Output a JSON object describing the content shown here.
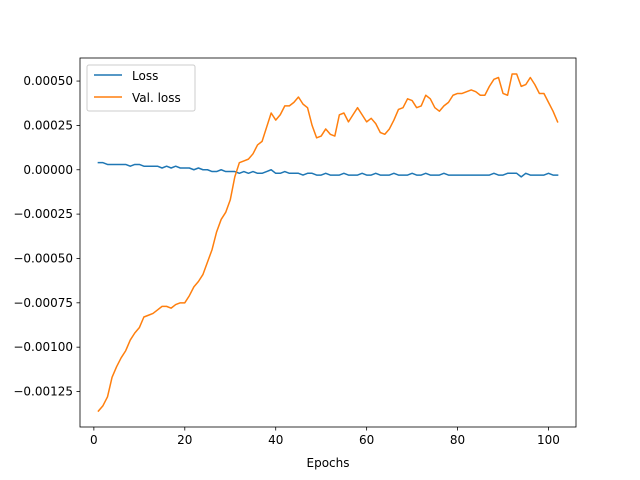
{
  "chart_data": {
    "type": "line",
    "title": "",
    "xlabel": "Epochs",
    "ylabel": "",
    "xlim": [
      -3.05,
      106.05
    ],
    "ylim": [
      -0.00145,
      0.00063
    ],
    "xticks": [
      0,
      20,
      40,
      60,
      80,
      100
    ],
    "xtick_labels": [
      "0",
      "20",
      "40",
      "60",
      "80",
      "100"
    ],
    "yticks": [
      -0.00125,
      -0.001,
      -0.00075,
      -0.0005,
      -0.00025,
      0,
      0.00025,
      0.0005
    ],
    "ytick_labels": [
      "−0.00125",
      "−0.00100",
      "−0.00075",
      "−0.00050",
      "−0.00025",
      "0.00000",
      "0.00025",
      "0.00050"
    ],
    "grid": false,
    "legend_position": "top-left",
    "x": [
      1,
      2,
      3,
      4,
      5,
      6,
      7,
      8,
      9,
      10,
      11,
      12,
      13,
      14,
      15,
      16,
      17,
      18,
      19,
      20,
      21,
      22,
      23,
      24,
      25,
      26,
      27,
      28,
      29,
      30,
      31,
      32,
      33,
      34,
      35,
      36,
      37,
      38,
      39,
      40,
      41,
      42,
      43,
      44,
      45,
      46,
      47,
      48,
      49,
      50,
      51,
      52,
      53,
      54,
      55,
      56,
      57,
      58,
      59,
      60,
      61,
      62,
      63,
      64,
      65,
      66,
      67,
      68,
      69,
      70,
      71,
      72,
      73,
      74,
      75,
      76,
      77,
      78,
      79,
      80,
      81,
      82,
      83,
      84,
      85,
      86,
      87,
      88,
      89,
      90,
      91,
      92,
      93,
      94,
      95,
      96,
      97,
      98,
      99,
      100,
      101,
      102
    ],
    "series": [
      {
        "name": "Loss",
        "color": "#1f77b4",
        "values": [
          4e-05,
          4e-05,
          3e-05,
          3e-05,
          3e-05,
          3e-05,
          3e-05,
          2e-05,
          3e-05,
          3e-05,
          2e-05,
          2e-05,
          2e-05,
          2e-05,
          1e-05,
          2e-05,
          1e-05,
          2e-05,
          1e-05,
          1e-05,
          1e-05,
          0.0,
          1e-05,
          0.0,
          0.0,
          -1e-05,
          -1e-05,
          0.0,
          -1e-05,
          -1e-05,
          -1e-05,
          -2e-05,
          -1e-05,
          -2e-05,
          -1e-05,
          -2e-05,
          -2e-05,
          -1e-05,
          0.0,
          -2e-05,
          -2e-05,
          -1e-05,
          -2e-05,
          -2e-05,
          -2e-05,
          -3e-05,
          -2e-05,
          -2e-05,
          -3e-05,
          -3e-05,
          -2e-05,
          -3e-05,
          -3e-05,
          -3e-05,
          -2e-05,
          -3e-05,
          -3e-05,
          -3e-05,
          -2e-05,
          -3e-05,
          -3e-05,
          -2e-05,
          -3e-05,
          -3e-05,
          -3e-05,
          -2e-05,
          -3e-05,
          -3e-05,
          -3e-05,
          -2e-05,
          -3e-05,
          -3e-05,
          -2e-05,
          -3e-05,
          -3e-05,
          -3e-05,
          -2e-05,
          -3e-05,
          -3e-05,
          -3e-05,
          -3e-05,
          -3e-05,
          -3e-05,
          -3e-05,
          -3e-05,
          -3e-05,
          -3e-05,
          -2e-05,
          -3e-05,
          -3e-05,
          -2e-05,
          -2e-05,
          -2e-05,
          -4e-05,
          -2e-05,
          -3e-05,
          -3e-05,
          -3e-05,
          -3e-05,
          -2e-05,
          -3e-05,
          -3e-05
        ]
      },
      {
        "name": "Val. loss",
        "color": "#ff7f0e",
        "values": [
          -0.00136,
          -0.00133,
          -0.00128,
          -0.00117,
          -0.00111,
          -0.00106,
          -0.00102,
          -0.00096,
          -0.00092,
          -0.00089,
          -0.00083,
          -0.00082,
          -0.00081,
          -0.00079,
          -0.00077,
          -0.00077,
          -0.00078,
          -0.00076,
          -0.00075,
          -0.00075,
          -0.00071,
          -0.00066,
          -0.00063,
          -0.00059,
          -0.00052,
          -0.00045,
          -0.00035,
          -0.00028,
          -0.00024,
          -0.00017,
          -4e-05,
          4e-05,
          5e-05,
          6e-05,
          9e-05,
          0.00014,
          0.00016,
          0.00024,
          0.00032,
          0.00028,
          0.00031,
          0.00036,
          0.00036,
          0.00038,
          0.00041,
          0.00037,
          0.00035,
          0.00025,
          0.00018,
          0.00019,
          0.00023,
          0.0002,
          0.00019,
          0.00031,
          0.00032,
          0.00027,
          0.00031,
          0.00035,
          0.00031,
          0.00027,
          0.00029,
          0.00026,
          0.00021,
          0.0002,
          0.00023,
          0.00028,
          0.00034,
          0.00035,
          0.0004,
          0.00039,
          0.00035,
          0.00036,
          0.00042,
          0.0004,
          0.00035,
          0.00033,
          0.00036,
          0.00038,
          0.00042,
          0.00043,
          0.00043,
          0.00044,
          0.00045,
          0.00044,
          0.00042,
          0.00042,
          0.00047,
          0.00051,
          0.00052,
          0.00043,
          0.00042,
          0.00054,
          0.00054,
          0.00047,
          0.00048,
          0.00052,
          0.00048,
          0.00043,
          0.00043,
          0.00038,
          0.00033,
          0.00027
        ]
      }
    ]
  }
}
